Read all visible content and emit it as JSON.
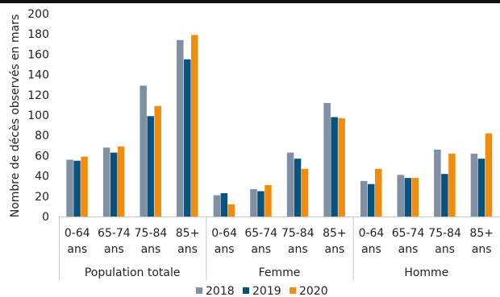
{
  "chart_data": {
    "type": "bar",
    "ylabel": "Nombre de décès observés en mars",
    "ylim": [
      0,
      200
    ],
    "yticks": [
      0,
      20,
      40,
      60,
      80,
      100,
      120,
      140,
      160,
      180,
      200
    ],
    "grid": false,
    "legend_position": "bottom",
    "groups": [
      {
        "label": "Population totale",
        "categories": [
          [
            "0-64",
            "ans"
          ],
          [
            "65-74",
            "ans"
          ],
          [
            "75-84",
            "ans"
          ],
          [
            "85+",
            "ans"
          ]
        ]
      },
      {
        "label": "Femme",
        "categories": [
          [
            "0-64",
            "ans"
          ],
          [
            "65-74",
            "ans"
          ],
          [
            "75-84",
            "ans"
          ],
          [
            "85+",
            "ans"
          ]
        ]
      },
      {
        "label": "Homme",
        "categories": [
          [
            "0-64",
            "ans"
          ],
          [
            "65-74",
            "ans"
          ],
          [
            "75-84",
            "ans"
          ],
          [
            "85+",
            "ans"
          ]
        ]
      }
    ],
    "series": [
      {
        "name": "2018",
        "color": "#7f8fa4",
        "values": [
          56,
          68,
          129,
          174,
          21,
          27,
          63,
          112,
          35,
          41,
          66,
          62
        ]
      },
      {
        "name": "2019",
        "color": "#08537e",
        "values": [
          55,
          63,
          99,
          155,
          23,
          25,
          57,
          98,
          32,
          38,
          42,
          57
        ]
      },
      {
        "name": "2020",
        "color": "#f28c0f",
        "values": [
          59,
          69,
          109,
          179,
          12,
          31,
          47,
          97,
          47,
          38,
          62,
          82
        ]
      }
    ]
  }
}
